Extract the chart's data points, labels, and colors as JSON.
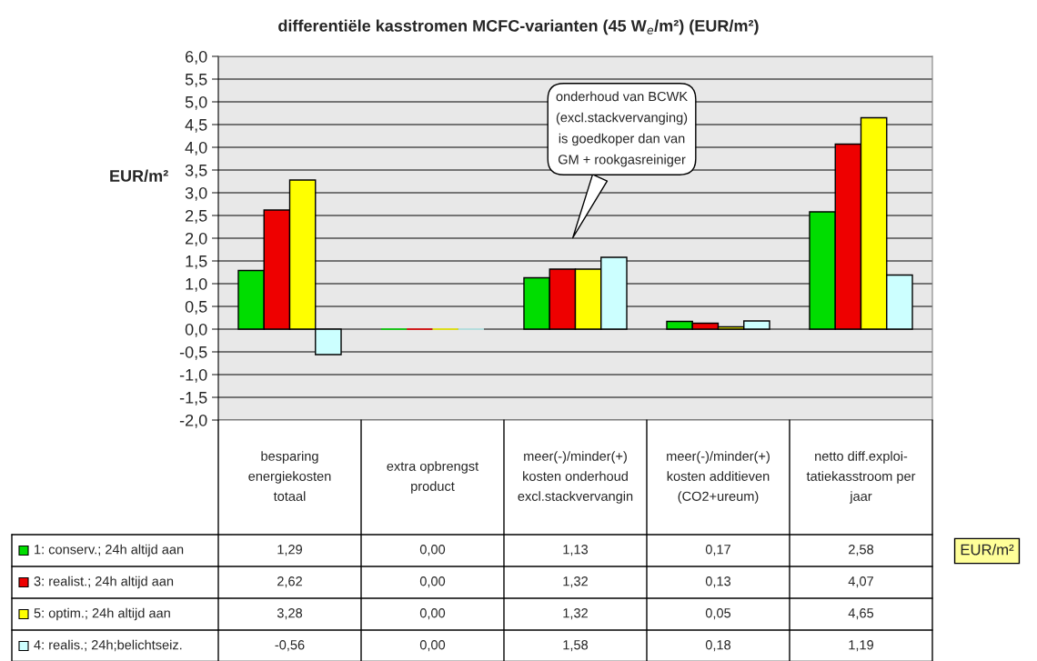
{
  "chart_data": {
    "type": "bar",
    "title": "differentiële kasstromen MCFC-varianten (45 W$_{e}$/m²) (EUR/m²)",
    "ylabel": "EUR/m²",
    "categories": [
      "besparing\nenergiekosten\ntotaal",
      "extra opbrengst\nproduct",
      "meer(-)/minder(+)\nkosten onderhoud\nexcl.stackvervangin",
      "meer(-)/minder(+)\nkosten additieven\n(CO2+ureum)",
      "netto diff.exploi-\ntatiekasstroom per\njaar"
    ],
    "series": [
      {
        "name": "1: conserv.; 24h altijd aan",
        "color": "#00dd00",
        "values": [
          1.29,
          0.0,
          1.13,
          0.17,
          2.58
        ],
        "value_labels": [
          "1,29",
          "0,00",
          "1,13",
          "0,17",
          "2,58"
        ]
      },
      {
        "name": "3: realist.; 24h altijd aan",
        "color": "#ee0000",
        "values": [
          2.62,
          0.0,
          1.32,
          0.13,
          4.07
        ],
        "value_labels": [
          "2,62",
          "0,00",
          "1,32",
          "0,13",
          "4,07"
        ]
      },
      {
        "name": "5: optim.; 24h altijd aan",
        "color": "#ffff00",
        "values": [
          3.28,
          0.0,
          1.32,
          0.05,
          4.65
        ],
        "value_labels": [
          "3,28",
          "0,00",
          "1,32",
          "0,05",
          "4,65"
        ]
      },
      {
        "name": "4: realis.; 24h;belichtseiz.",
        "color": "#ccffff",
        "values": [
          -0.56,
          0.0,
          1.58,
          0.18,
          1.19
        ],
        "value_labels": [
          "-0,56",
          "0,00",
          "1,58",
          "0,18",
          "1,19"
        ]
      }
    ],
    "ylim": [
      -2.0,
      6.0
    ],
    "yticks": [
      {
        "value": -2.0,
        "label": "-2,0"
      },
      {
        "value": -1.5,
        "label": "-1,5"
      },
      {
        "value": -1.0,
        "label": "-1,0"
      },
      {
        "value": -0.5,
        "label": "-0,5"
      },
      {
        "value": 0.0,
        "label": "0,0"
      },
      {
        "value": 0.5,
        "label": "0,5"
      },
      {
        "value": 1.0,
        "label": "1,0"
      },
      {
        "value": 1.5,
        "label": "1,5"
      },
      {
        "value": 2.0,
        "label": "2,0"
      },
      {
        "value": 2.5,
        "label": "2,5"
      },
      {
        "value": 3.0,
        "label": "3,0"
      },
      {
        "value": 3.5,
        "label": "3,5"
      },
      {
        "value": 4.0,
        "label": "4,0"
      },
      {
        "value": 4.5,
        "label": "4,5"
      },
      {
        "value": 5.0,
        "label": "5,0"
      },
      {
        "value": 5.5,
        "label": "5,5"
      },
      {
        "value": 6.0,
        "label": "6,0"
      }
    ],
    "grid": "y",
    "legend": "bottom left",
    "annotations": [
      "onderhoud van BCWK\n(excl.stackvervanging)\nis goedkoper dan van\nGM + rookgasreiniger",
      "EUR/m²"
    ]
  }
}
